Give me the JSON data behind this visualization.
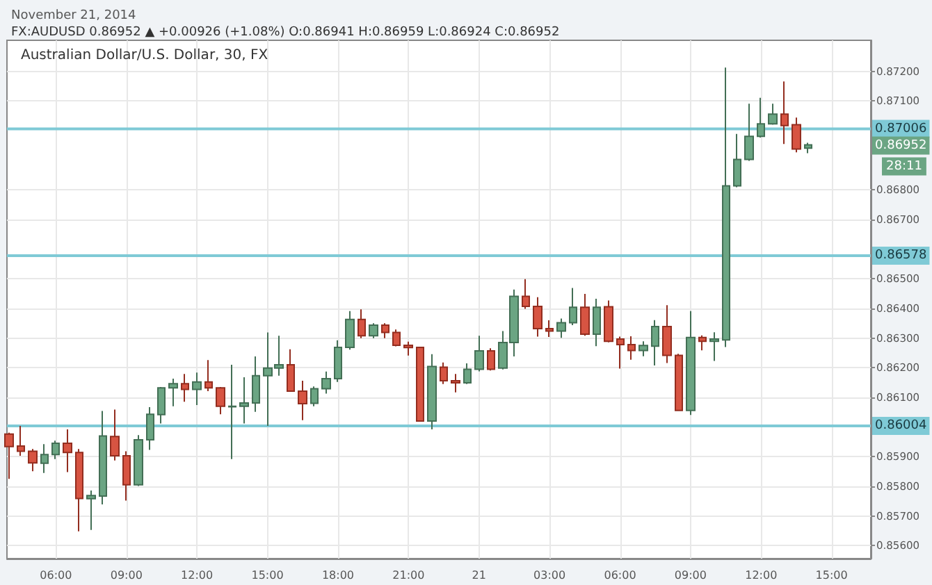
{
  "chart_data": {
    "type": "candlestick",
    "title": "FX:AUDUSD 0.86952 ▲ +0.00926 (+1.08%) O:0.86941 H:0.86959 L:0.86924 C:0.86952",
    "subtitle": "November 21, 2014",
    "x": [
      "2014-11-20T04:00",
      "2014-11-20T04:30",
      "2014-11-20T05:00",
      "2014-11-20T05:30",
      "2014-11-20T06:00",
      "2014-11-20T06:30",
      "2014-11-20T07:00",
      "2014-11-20T07:30",
      "2014-11-20T08:00",
      "2014-11-20T08:30",
      "2014-11-20T09:00",
      "2014-11-20T09:30",
      "2014-11-20T10:00",
      "2014-11-20T10:30",
      "2014-11-20T11:00",
      "2014-11-20T11:30",
      "2014-11-20T12:00",
      "2014-11-20T12:30",
      "2014-11-20T13:00",
      "2014-11-20T13:30",
      "2014-11-20T14:00",
      "2014-11-20T14:30",
      "2014-11-20T15:00",
      "2014-11-20T15:30",
      "2014-11-20T16:00",
      "2014-11-20T16:30",
      "2014-11-20T17:00",
      "2014-11-20T17:30",
      "2014-11-20T18:00",
      "2014-11-20T18:30",
      "2014-11-20T19:00",
      "2014-11-20T19:30",
      "2014-11-20T20:00",
      "2014-11-20T20:30",
      "2014-11-20T21:00",
      "2014-11-20T21:30",
      "2014-11-20T22:00",
      "2014-11-20T22:30",
      "2014-11-20T23:00",
      "2014-11-20T23:30",
      "2014-11-21T00:00",
      "2014-11-21T00:30",
      "2014-11-21T01:00",
      "2014-11-21T01:30",
      "2014-11-21T02:00",
      "2014-11-21T02:30",
      "2014-11-21T03:00",
      "2014-11-21T03:30",
      "2014-11-21T04:00",
      "2014-11-21T04:30",
      "2014-11-21T05:00",
      "2014-11-21T05:30",
      "2014-11-21T06:00",
      "2014-11-21T06:30",
      "2014-11-21T07:00",
      "2014-11-21T07:30",
      "2014-11-21T08:00",
      "2014-11-21T08:30",
      "2014-11-21T09:00",
      "2014-11-21T09:30",
      "2014-11-21T10:00",
      "2014-11-21T10:30",
      "2014-11-21T11:00",
      "2014-11-21T11:30",
      "2014-11-21T12:00",
      "2014-11-21T12:30",
      "2014-11-21T13:00",
      "2014-11-21T13:30",
      "2014-11-21T14:00"
    ],
    "ohlc": [
      [
        0.85976,
        0.85981,
        0.85825,
        0.85934
      ],
      [
        0.85936,
        0.86004,
        0.85903,
        0.85918
      ],
      [
        0.85918,
        0.85926,
        0.85851,
        0.85879
      ],
      [
        0.85878,
        0.85942,
        0.85845,
        0.85907
      ],
      [
        0.85907,
        0.85954,
        0.85892,
        0.85945
      ],
      [
        0.85945,
        0.85992,
        0.85848,
        0.85914
      ],
      [
        0.85914,
        0.85926,
        0.85648,
        0.85759
      ],
      [
        0.85758,
        0.85786,
        0.85653,
        0.85769
      ],
      [
        0.85767,
        0.86054,
        0.85739,
        0.8597
      ],
      [
        0.85968,
        0.86059,
        0.85887,
        0.85903
      ],
      [
        0.85903,
        0.85918,
        0.85752,
        0.85805
      ],
      [
        0.85805,
        0.85973,
        0.85801,
        0.85957
      ],
      [
        0.85957,
        0.86067,
        0.85923,
        0.86043
      ],
      [
        0.86042,
        0.86135,
        0.86012,
        0.86132
      ],
      [
        0.86132,
        0.86163,
        0.8607,
        0.86146
      ],
      [
        0.86146,
        0.86179,
        0.86085,
        0.86127
      ],
      [
        0.86127,
        0.86184,
        0.86074,
        0.86152
      ],
      [
        0.86152,
        0.86226,
        0.86121,
        0.86132
      ],
      [
        0.86132,
        0.86135,
        0.86043,
        0.8607
      ],
      [
        0.86068,
        0.8621,
        0.85892,
        0.8607
      ],
      [
        0.8607,
        0.86168,
        0.86012,
        0.86081
      ],
      [
        0.86081,
        0.86238,
        0.86051,
        0.86173
      ],
      [
        0.86173,
        0.86319,
        0.86004,
        0.86199
      ],
      [
        0.86199,
        0.86308,
        0.86173,
        0.8621
      ],
      [
        0.8621,
        0.86262,
        0.86121,
        0.86121
      ],
      [
        0.86121,
        0.86156,
        0.86023,
        0.86079
      ],
      [
        0.8608,
        0.86137,
        0.8607,
        0.86129
      ],
      [
        0.86129,
        0.86187,
        0.86113,
        0.86163
      ],
      [
        0.86163,
        0.86293,
        0.86152,
        0.86269
      ],
      [
        0.86269,
        0.86391,
        0.86261,
        0.86363
      ],
      [
        0.86363,
        0.86397,
        0.863,
        0.86308
      ],
      [
        0.86308,
        0.8635,
        0.863,
        0.86344
      ],
      [
        0.86344,
        0.8635,
        0.863,
        0.86319
      ],
      [
        0.86319,
        0.86329,
        0.86272,
        0.86276
      ],
      [
        0.86276,
        0.86288,
        0.86241,
        0.86268
      ],
      [
        0.86269,
        0.86269,
        0.8602,
        0.8602
      ],
      [
        0.8602,
        0.86246,
        0.85992,
        0.86204
      ],
      [
        0.86202,
        0.86218,
        0.86145,
        0.86156
      ],
      [
        0.86156,
        0.86179,
        0.86117,
        0.86149
      ],
      [
        0.86149,
        0.86215,
        0.86145,
        0.86195
      ],
      [
        0.86195,
        0.86308,
        0.86188,
        0.86257
      ],
      [
        0.86257,
        0.86266,
        0.86191,
        0.86195
      ],
      [
        0.86199,
        0.86324,
        0.86194,
        0.86285
      ],
      [
        0.86285,
        0.86464,
        0.86238,
        0.86441
      ],
      [
        0.86441,
        0.86499,
        0.86399,
        0.86407
      ],
      [
        0.86407,
        0.86438,
        0.86305,
        0.86332
      ],
      [
        0.86332,
        0.8636,
        0.86304,
        0.86324
      ],
      [
        0.86324,
        0.86366,
        0.86301,
        0.86352
      ],
      [
        0.86352,
        0.86469,
        0.86344,
        0.86404
      ],
      [
        0.86404,
        0.86449,
        0.86308,
        0.86313
      ],
      [
        0.86313,
        0.86433,
        0.86273,
        0.86404
      ],
      [
        0.86406,
        0.86427,
        0.86286,
        0.86289
      ],
      [
        0.86297,
        0.86305,
        0.86197,
        0.86278
      ],
      [
        0.86278,
        0.86306,
        0.86227,
        0.86258
      ],
      [
        0.86258,
        0.86289,
        0.86239,
        0.86275
      ],
      [
        0.86273,
        0.86361,
        0.86208,
        0.86339
      ],
      [
        0.86339,
        0.86411,
        0.86216,
        0.86242
      ],
      [
        0.86242,
        0.86247,
        0.86056,
        0.86056
      ],
      [
        0.86056,
        0.86391,
        0.86041,
        0.86302
      ],
      [
        0.86302,
        0.86309,
        0.86259,
        0.86289
      ],
      [
        0.86289,
        0.8632,
        0.86223,
        0.86297
      ],
      [
        0.86294,
        0.87213,
        0.8627,
        0.86814
      ],
      [
        0.86814,
        0.86989,
        0.86809,
        0.86903
      ],
      [
        0.86903,
        0.87091,
        0.86898,
        0.86981
      ],
      [
        0.86981,
        0.87111,
        0.86977,
        0.87023
      ],
      [
        0.87023,
        0.87091,
        0.8702,
        0.87056
      ],
      [
        0.87056,
        0.87166,
        0.86955,
        0.87017
      ],
      [
        0.8702,
        0.87044,
        0.86927,
        0.86938
      ],
      [
        0.86941,
        0.86959,
        0.86924,
        0.86952
      ]
    ],
    "colors": [
      "#d75442",
      "#d75442",
      "#d75442",
      "#6ba583",
      "#6ba583",
      "#d75442",
      "#d75442",
      "#6ba583",
      "#6ba583",
      "#d75442",
      "#d75442",
      "#6ba583",
      "#6ba583",
      "#6ba583",
      "#6ba583",
      "#d75442",
      "#6ba583",
      "#d75442",
      "#d75442",
      "#6ba583",
      "#6ba583",
      "#6ba583",
      "#6ba583",
      "#6ba583",
      "#d75442",
      "#d75442",
      "#6ba583",
      "#6ba583",
      "#6ba583",
      "#6ba583",
      "#d75442",
      "#6ba583",
      "#d75442",
      "#d75442",
      "#d75442",
      "#d75442",
      "#6ba583",
      "#d75442",
      "#d75442",
      "#6ba583",
      "#6ba583",
      "#d75442",
      "#6ba583",
      "#6ba583",
      "#d75442",
      "#d75442",
      "#d75442",
      "#6ba583",
      "#6ba583",
      "#d75442",
      "#6ba583",
      "#d75442",
      "#d75442",
      "#d75442",
      "#6ba583",
      "#6ba583",
      "#d75442",
      "#d75442",
      "#6ba583",
      "#d75442",
      "#6ba583",
      "#6ba583",
      "#6ba583",
      "#6ba583",
      "#6ba583",
      "#6ba583",
      "#d75442",
      "#d75442",
      "#6ba583"
    ],
    "xlim": [
      "2014-11-20T03:55",
      "2014-11-21T16:40"
    ],
    "xticks": [
      {
        "value": "2014-11-20T06:00",
        "label": "06:00"
      },
      {
        "value": "2014-11-20T09:00",
        "label": "09:00"
      },
      {
        "value": "2014-11-20T12:00",
        "label": "12:00"
      },
      {
        "value": "2014-11-20T15:00",
        "label": "15:00"
      },
      {
        "value": "2014-11-20T18:00",
        "label": "18:00"
      },
      {
        "value": "2014-11-20T21:00",
        "label": "21:00"
      },
      {
        "value": "2014-11-21T00:00",
        "label": "21"
      },
      {
        "value": "2014-11-21T03:00",
        "label": "03:00"
      },
      {
        "value": "2014-11-21T06:00",
        "label": "06:00"
      },
      {
        "value": "2014-11-21T09:00",
        "label": "09:00"
      },
      {
        "value": "2014-11-21T12:00",
        "label": "12:00"
      },
      {
        "value": "2014-11-21T15:00",
        "label": "15:00"
      }
    ],
    "ylim": [
      0.85556,
      0.87305
    ],
    "yticks": [
      {
        "value": 0.856,
        "label": "0.85600"
      },
      {
        "value": 0.857,
        "label": "0.85700"
      },
      {
        "value": 0.858,
        "label": "0.85800"
      },
      {
        "value": 0.859,
        "label": "0.85900"
      },
      {
        "value": 0.861,
        "label": "0.86100"
      },
      {
        "value": 0.862,
        "label": "0.86200"
      },
      {
        "value": 0.863,
        "label": "0.86300"
      },
      {
        "value": 0.864,
        "label": "0.86400"
      },
      {
        "value": 0.865,
        "label": "0.86500"
      },
      {
        "value": 0.867,
        "label": "0.86700"
      },
      {
        "value": 0.868,
        "label": "0.86800"
      },
      {
        "value": 0.871,
        "label": "0.87100"
      },
      {
        "value": 0.872,
        "label": "0.87200"
      }
    ],
    "ref_lines": [
      {
        "axis": "y",
        "value": 0.87006,
        "label": "0.87006",
        "color": "#7fcad6"
      },
      {
        "axis": "y",
        "value": 0.86578,
        "label": "0.86578",
        "color": "#7fcad6"
      },
      {
        "axis": "y",
        "value": 0.86004,
        "label": "0.86004",
        "color": "#7fcad6"
      }
    ],
    "annotations": [
      "Australian Dollar/U.S. Dollar, 30, FX",
      {
        "text": "0.86952",
        "y": 0.86952
      },
      "28:11"
    ],
    "grid": true
  }
}
